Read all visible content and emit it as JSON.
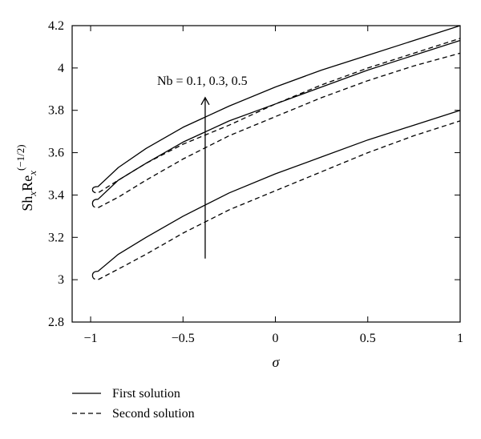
{
  "chart_data": {
    "type": "line",
    "title": "",
    "xlabel": "σ",
    "ylabel_parts": {
      "base1": "Sh",
      "sub1": "x",
      "base2": "Re",
      "sub2": "x",
      "sup": "(−1/2)"
    },
    "xlim": [
      -1.1,
      1.0
    ],
    "ylim": [
      2.8,
      4.2
    ],
    "x_ticks": [
      -1,
      -0.5,
      0,
      0.5,
      1
    ],
    "x_tick_labels": [
      "−1",
      "−0.5",
      "0",
      "0.5",
      "1"
    ],
    "y_ticks": [
      2.8,
      3.0,
      3.2,
      3.4,
      3.6,
      3.8,
      4.0,
      4.2
    ],
    "y_tick_labels": [
      "2.8",
      "3",
      "3.2",
      "3.4",
      "3.6",
      "3.8",
      "4",
      "4.2"
    ],
    "grid": false,
    "annotation": {
      "text": "Nb = 0.1, 0.3, 0.5",
      "arrow_x": -0.38,
      "arrow_from_y": 3.1,
      "arrow_to_y": 3.86
    },
    "legend": [
      {
        "label": "First solution",
        "style": "solid"
      },
      {
        "label": "Second solution",
        "style": "dashed"
      }
    ],
    "legend_position": "bottom-left, below plot",
    "series": [
      {
        "group": "Nb = 0.1",
        "style": "solid",
        "points": [
          [
            -0.96,
            3.04
          ],
          [
            -0.85,
            3.12
          ],
          [
            -0.7,
            3.2
          ],
          [
            -0.5,
            3.3
          ],
          [
            -0.25,
            3.41
          ],
          [
            0,
            3.5
          ],
          [
            0.25,
            3.58
          ],
          [
            0.5,
            3.66
          ],
          [
            0.75,
            3.73
          ],
          [
            1,
            3.8
          ]
        ]
      },
      {
        "group": "Nb = 0.1",
        "style": "dashed",
        "points": [
          [
            -0.96,
            3.0
          ],
          [
            -0.85,
            3.05
          ],
          [
            -0.7,
            3.12
          ],
          [
            -0.5,
            3.22
          ],
          [
            -0.25,
            3.33
          ],
          [
            0,
            3.42
          ],
          [
            0.25,
            3.51
          ],
          [
            0.5,
            3.6
          ],
          [
            0.75,
            3.68
          ],
          [
            1,
            3.75
          ]
        ]
      },
      {
        "group": "Nb = 0.3",
        "style": "solid",
        "points": [
          [
            -0.96,
            3.38
          ],
          [
            -0.85,
            3.47
          ],
          [
            -0.7,
            3.55
          ],
          [
            -0.5,
            3.65
          ],
          [
            -0.25,
            3.75
          ],
          [
            0,
            3.83
          ],
          [
            0.25,
            3.91
          ],
          [
            0.5,
            3.99
          ],
          [
            0.75,
            4.06
          ],
          [
            1,
            4.13
          ]
        ]
      },
      {
        "group": "Nb = 0.3",
        "style": "dashed",
        "points": [
          [
            -0.96,
            3.34
          ],
          [
            -0.85,
            3.39
          ],
          [
            -0.7,
            3.47
          ],
          [
            -0.5,
            3.57
          ],
          [
            -0.25,
            3.68
          ],
          [
            0,
            3.77
          ],
          [
            0.25,
            3.86
          ],
          [
            0.5,
            3.94
          ],
          [
            0.75,
            4.01
          ],
          [
            1,
            4.07
          ]
        ]
      },
      {
        "group": "Nb = 0.5",
        "style": "solid",
        "points": [
          [
            -0.96,
            3.44
          ],
          [
            -0.85,
            3.53
          ],
          [
            -0.7,
            3.62
          ],
          [
            -0.5,
            3.72
          ],
          [
            -0.25,
            3.82
          ],
          [
            0,
            3.91
          ],
          [
            0.25,
            3.99
          ],
          [
            0.5,
            4.06
          ],
          [
            0.75,
            4.13
          ],
          [
            1,
            4.2
          ]
        ]
      },
      {
        "group": "Nb = 0.5",
        "style": "dashed",
        "points": [
          [
            -0.96,
            3.41
          ],
          [
            -0.85,
            3.47
          ],
          [
            -0.7,
            3.55
          ],
          [
            -0.5,
            3.64
          ],
          [
            -0.25,
            3.73
          ],
          [
            0,
            3.83
          ],
          [
            0.25,
            3.92
          ],
          [
            0.5,
            4.0
          ],
          [
            0.75,
            4.07
          ],
          [
            1,
            4.14
          ]
        ]
      }
    ]
  }
}
